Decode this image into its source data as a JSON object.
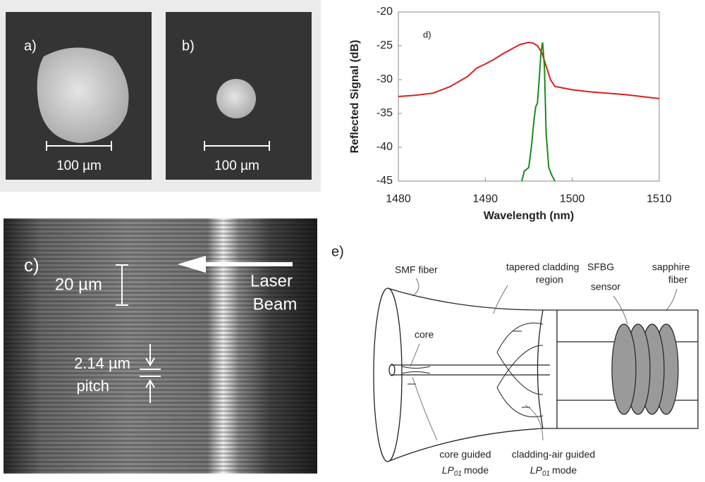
{
  "panel_a": {
    "label": "a)",
    "scale": "100 µm"
  },
  "panel_b": {
    "label": "b)",
    "scale": "100 µm"
  },
  "panel_c": {
    "label": "c)",
    "scale": "20 µm",
    "beam": [
      "Laser",
      "Beam"
    ],
    "pitch_value": "2.14 µm",
    "pitch": "pitch"
  },
  "panel_e": {
    "label": "e)",
    "smf": "SMF fiber",
    "taper": [
      "tapered cladding",
      "region"
    ],
    "sfbg": [
      "SFBG",
      "sensor"
    ],
    "sapphire": [
      "sapphire",
      "fiber"
    ],
    "core": "core",
    "core_mode": {
      "text": "core guided",
      "lp": "LP",
      "sub": "01",
      "suffix": "mode"
    },
    "clad_mode": {
      "text": "cladding-air guided",
      "lp": "LP",
      "sub": "01",
      "suffix": "mode"
    }
  },
  "chart_data": {
    "type": "line",
    "annotation": "d)",
    "x_label": "Wavelength (nm)",
    "y_label": "Reflected Signal (dB)",
    "xlim": [
      1480,
      1510
    ],
    "xticks": [
      1480,
      1490,
      1500,
      1510
    ],
    "ylim": [
      -45,
      -20
    ],
    "yticks": [
      -45,
      -40,
      -35,
      -30,
      -25,
      -20
    ],
    "series": [
      {
        "color": "#dd1f1f",
        "x": [
          1480,
          1482,
          1484,
          1486,
          1488,
          1489,
          1490,
          1491,
          1492,
          1493,
          1494,
          1495,
          1495.5,
          1496,
          1496.5,
          1497,
          1497.5,
          1498,
          1500,
          1502,
          1504,
          1506,
          1508,
          1510
        ],
        "values": [
          -32.5,
          -32.3,
          -32,
          -31,
          -29.5,
          -28.3,
          -27.7,
          -27,
          -26.2,
          -25.5,
          -24.8,
          -24.5,
          -24.6,
          -25,
          -26,
          -28,
          -30,
          -31,
          -31.5,
          -31.8,
          -32,
          -32.2,
          -32.5,
          -32.8
        ]
      },
      {
        "color": "#1a8a1a",
        "x": [
          1494.2,
          1494.5,
          1495,
          1495.3,
          1495.6,
          1495.8,
          1496,
          1496.2,
          1496.4,
          1496.6,
          1496.8,
          1497,
          1497.3,
          1497.6,
          1498
        ],
        "values": [
          -45,
          -43.5,
          -43,
          -40,
          -36,
          -34,
          -33.5,
          -30,
          -26,
          -24.5,
          -28,
          -38,
          -43,
          -44,
          -45
        ]
      }
    ]
  }
}
